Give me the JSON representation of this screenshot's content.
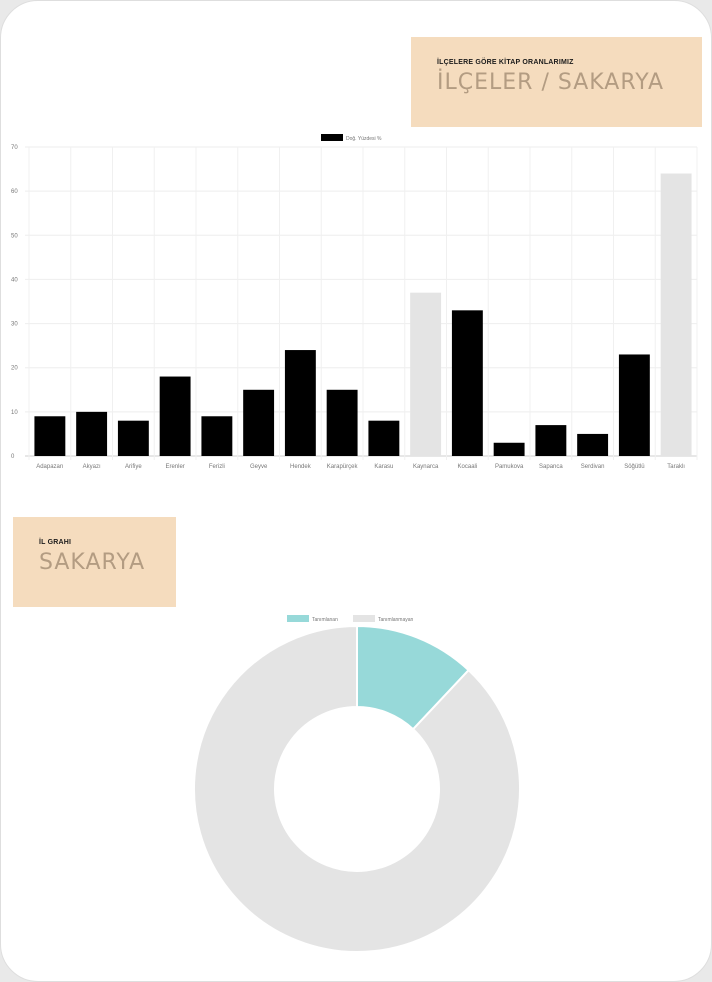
{
  "bar_section": {
    "subtitle": "İLÇELERE GÖRE KİTAP ORANLARIMIZ",
    "title": "İLÇELER / SAKARYA"
  },
  "donut_section": {
    "subtitle": "İL GRAHI",
    "title": "SAKARYA"
  },
  "chart_data": [
    {
      "type": "bar",
      "legend": [
        "Doğ. Yüzdesi %"
      ],
      "legend_position": "top",
      "grid": true,
      "categories": [
        "Adapazarı",
        "Akyazı",
        "Arifiye",
        "Erenler",
        "Ferizli",
        "Geyve",
        "Hendek",
        "Karapürçek",
        "Karasu",
        "Kaynarca",
        "Kocaali",
        "Pamukova",
        "Sapanca",
        "Serdivan",
        "Söğütlü",
        "Taraklı"
      ],
      "values": [
        9,
        10,
        8,
        18,
        9,
        15,
        24,
        15,
        8,
        37,
        33,
        3,
        7,
        5,
        23,
        64
      ],
      "bar_colors": [
        "#000000",
        "#000000",
        "#000000",
        "#000000",
        "#000000",
        "#000000",
        "#000000",
        "#000000",
        "#000000",
        "#e4e4e4",
        "#000000",
        "#000000",
        "#000000",
        "#000000",
        "#000000",
        "#e4e4e4"
      ],
      "ylim": [
        0,
        70
      ],
      "yticks": [
        0,
        10,
        20,
        30,
        40,
        50,
        60,
        70
      ]
    },
    {
      "type": "pie",
      "variant": "doughnut",
      "legend_position": "top",
      "labels": [
        "Tanımlanan",
        "Tanımlanmayan"
      ],
      "values": [
        12,
        88
      ],
      "colors": [
        "#97d9d9",
        "#e4e4e4"
      ]
    }
  ]
}
